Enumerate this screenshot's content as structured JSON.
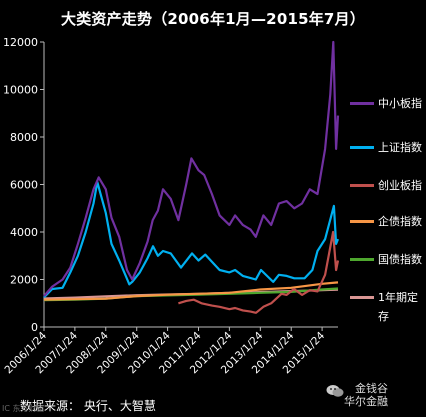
{
  "title": "大类资产走势（2006年1月—2015年7月）",
  "source_text": "数据来源：  央行、大智慧",
  "watermark_left": "IC 东方财富",
  "watermark_right": "金钱谷\n华尔金融",
  "chart_data": {
    "type": "line",
    "title": "大类资产走势（2006年1月—2015年7月）",
    "xlabel": "",
    "ylabel": "",
    "ylim": [
      0,
      12000
    ],
    "yticks": [
      0,
      2000,
      4000,
      6000,
      8000,
      10000,
      12000
    ],
    "x_ticks": [
      "2006/1/24",
      "2007/1/24",
      "2008/1/24",
      "2009/1/24",
      "2010/1/24",
      "2011/1/24",
      "2012/1/24",
      "2013/1/24",
      "2014/1/24",
      "2015/1/24"
    ],
    "xlim": [
      "2006-01-24",
      "2015-07-31"
    ],
    "grid": false,
    "legend_position": "right",
    "series": [
      {
        "name": "中小板指",
        "color": "#7030a0",
        "points": [
          [
            "2006-01-24",
            1300
          ],
          [
            "2006-05-01",
            1700
          ],
          [
            "2006-09-01",
            2000
          ],
          [
            "2006-12-01",
            2500
          ],
          [
            "2007-03-01",
            3500
          ],
          [
            "2007-06-01",
            4600
          ],
          [
            "2007-09-01",
            5800
          ],
          [
            "2007-11-01",
            6300
          ],
          [
            "2008-01-24",
            5800
          ],
          [
            "2008-04-01",
            4600
          ],
          [
            "2008-07-01",
            3800
          ],
          [
            "2008-10-01",
            2400
          ],
          [
            "2008-12-01",
            2000
          ],
          [
            "2009-03-01",
            2700
          ],
          [
            "2009-06-01",
            3600
          ],
          [
            "2009-08-01",
            4500
          ],
          [
            "2009-10-01",
            4900
          ],
          [
            "2009-12-01",
            5800
          ],
          [
            "2010-03-01",
            5400
          ],
          [
            "2010-06-01",
            4500
          ],
          [
            "2010-09-01",
            6000
          ],
          [
            "2010-11-01",
            7100
          ],
          [
            "2011-01-24",
            6600
          ],
          [
            "2011-04-01",
            6400
          ],
          [
            "2011-07-01",
            5600
          ],
          [
            "2011-10-01",
            4700
          ],
          [
            "2012-01-24",
            4300
          ],
          [
            "2012-04-01",
            4700
          ],
          [
            "2012-07-01",
            4300
          ],
          [
            "2012-10-01",
            4100
          ],
          [
            "2012-12-01",
            3800
          ],
          [
            "2013-03-01",
            4700
          ],
          [
            "2013-06-01",
            4300
          ],
          [
            "2013-09-01",
            5200
          ],
          [
            "2013-12-01",
            5300
          ],
          [
            "2014-03-01",
            5000
          ],
          [
            "2014-06-01",
            5200
          ],
          [
            "2014-09-01",
            5800
          ],
          [
            "2014-12-01",
            5600
          ],
          [
            "2015-03-01",
            7500
          ],
          [
            "2015-05-01",
            9800
          ],
          [
            "2015-06-05",
            12000
          ],
          [
            "2015-07-08",
            7500
          ],
          [
            "2015-07-31",
            8900
          ]
        ]
      },
      {
        "name": "上证指数",
        "color": "#00b0f0",
        "points": [
          [
            "2006-01-24",
            1250
          ],
          [
            "2006-05-01",
            1600
          ],
          [
            "2006-09-01",
            1650
          ],
          [
            "2006-12-01",
            2300
          ],
          [
            "2007-03-01",
            3000
          ],
          [
            "2007-06-01",
            4000
          ],
          [
            "2007-09-01",
            5200
          ],
          [
            "2007-10-16",
            6100
          ],
          [
            "2008-01-24",
            4800
          ],
          [
            "2008-04-01",
            3500
          ],
          [
            "2008-07-01",
            2800
          ],
          [
            "2008-10-28",
            1800
          ],
          [
            "2008-12-01",
            1900
          ],
          [
            "2009-03-01",
            2300
          ],
          [
            "2009-06-01",
            2900
          ],
          [
            "2009-08-04",
            3400
          ],
          [
            "2009-10-01",
            3000
          ],
          [
            "2009-12-01",
            3200
          ],
          [
            "2010-03-01",
            3100
          ],
          [
            "2010-07-01",
            2500
          ],
          [
            "2010-11-08",
            3100
          ],
          [
            "2011-01-24",
            2800
          ],
          [
            "2011-04-15",
            3050
          ],
          [
            "2011-07-01",
            2750
          ],
          [
            "2011-10-01",
            2400
          ],
          [
            "2012-01-24",
            2300
          ],
          [
            "2012-04-01",
            2400
          ],
          [
            "2012-07-01",
            2150
          ],
          [
            "2012-12-01",
            2000
          ],
          [
            "2013-02-01",
            2400
          ],
          [
            "2013-06-25",
            1900
          ],
          [
            "2013-09-01",
            2200
          ],
          [
            "2013-12-01",
            2150
          ],
          [
            "2014-03-01",
            2050
          ],
          [
            "2014-07-01",
            2050
          ],
          [
            "2014-10-01",
            2400
          ],
          [
            "2014-12-01",
            3200
          ],
          [
            "2015-03-01",
            3700
          ],
          [
            "2015-06-12",
            5100
          ],
          [
            "2015-07-08",
            3500
          ],
          [
            "2015-07-31",
            3700
          ]
        ]
      },
      {
        "name": "创业板指",
        "color": "#c0504d",
        "points": [
          [
            "2010-06-01",
            1000
          ],
          [
            "2010-09-01",
            1100
          ],
          [
            "2010-12-01",
            1150
          ],
          [
            "2011-03-01",
            1000
          ],
          [
            "2011-07-01",
            900
          ],
          [
            "2011-10-01",
            850
          ],
          [
            "2012-01-24",
            750
          ],
          [
            "2012-04-01",
            800
          ],
          [
            "2012-07-01",
            700
          ],
          [
            "2012-10-01",
            650
          ],
          [
            "2012-12-04",
            600
          ],
          [
            "2013-03-01",
            850
          ],
          [
            "2013-06-01",
            1000
          ],
          [
            "2013-10-01",
            1400
          ],
          [
            "2013-12-01",
            1350
          ],
          [
            "2014-02-26",
            1600
          ],
          [
            "2014-06-01",
            1350
          ],
          [
            "2014-09-01",
            1550
          ],
          [
            "2014-12-01",
            1500
          ],
          [
            "2015-03-01",
            2200
          ],
          [
            "2015-06-03",
            4000
          ],
          [
            "2015-07-08",
            2400
          ],
          [
            "2015-07-31",
            2800
          ]
        ]
      },
      {
        "name": "企债指数",
        "color": "#f79646",
        "points": [
          [
            "2006-01-24",
            1150
          ],
          [
            "2007-01-24",
            1170
          ],
          [
            "2008-01-24",
            1190
          ],
          [
            "2009-01-24",
            1300
          ],
          [
            "2010-01-24",
            1360
          ],
          [
            "2011-01-24",
            1400
          ],
          [
            "2012-01-24",
            1440
          ],
          [
            "2013-01-24",
            1580
          ],
          [
            "2014-01-24",
            1650
          ],
          [
            "2015-01-24",
            1820
          ],
          [
            "2015-07-31",
            1880
          ]
        ]
      },
      {
        "name": "国债指数",
        "color": "#4ea72e",
        "points": [
          [
            "2006-01-24",
            1130
          ],
          [
            "2007-01-24",
            1150
          ],
          [
            "2008-01-24",
            1190
          ],
          [
            "2009-01-24",
            1300
          ],
          [
            "2010-01-24",
            1330
          ],
          [
            "2011-01-24",
            1360
          ],
          [
            "2012-01-24",
            1400
          ],
          [
            "2013-01-24",
            1440
          ],
          [
            "2014-01-24",
            1480
          ],
          [
            "2015-01-24",
            1580
          ],
          [
            "2015-07-31",
            1620
          ]
        ]
      },
      {
        "name": "1年期定存",
        "color": "#d99694",
        "points": [
          [
            "2006-01-24",
            1200
          ],
          [
            "2007-01-24",
            1240
          ],
          [
            "2008-01-24",
            1290
          ],
          [
            "2009-01-24",
            1340
          ],
          [
            "2010-01-24",
            1370
          ],
          [
            "2011-01-24",
            1400
          ],
          [
            "2012-01-24",
            1440
          ],
          [
            "2013-01-24",
            1470
          ],
          [
            "2014-01-24",
            1510
          ],
          [
            "2015-01-24",
            1550
          ],
          [
            "2015-07-31",
            1570
          ]
        ]
      }
    ]
  }
}
